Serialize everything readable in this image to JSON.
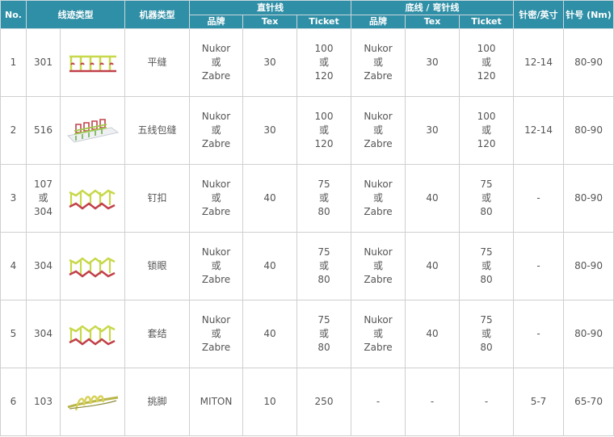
{
  "headers": {
    "no": "No.",
    "stitch_type": "线迹类型",
    "machine_type": "机器类型",
    "needle_thread": "直针线",
    "bobbin_thread": "底线 / 弯针线",
    "brand": "品牌",
    "tex": "Tex",
    "ticket": "Ticket",
    "spi": "针密/英寸",
    "needle_size": "针号 (Nm)"
  },
  "rows": [
    {
      "no": "1",
      "stitch": [
        "301"
      ],
      "machine": "平缝",
      "n_brand": [
        "Nukor",
        "或",
        "Zabre"
      ],
      "n_tex": "30",
      "n_ticket": [
        "100",
        "或",
        "120"
      ],
      "b_brand": [
        "Nukor",
        "或",
        "Zabre"
      ],
      "b_tex": "30",
      "b_ticket": [
        "100",
        "或",
        "120"
      ],
      "spi": "12-14",
      "needle": "80-90",
      "icon": "lockstitch-diagram-icon"
    },
    {
      "no": "2",
      "stitch": [
        "516"
      ],
      "machine": "五线包缝",
      "n_brand": [
        "Nukor",
        "或",
        "Zabre"
      ],
      "n_tex": "30",
      "n_ticket": [
        "100",
        "或",
        "120"
      ],
      "b_brand": [
        "Nukor",
        "或",
        "Zabre"
      ],
      "b_tex": "30",
      "b_ticket": [
        "100",
        "或",
        "120"
      ],
      "spi": "12-14",
      "needle": "80-90",
      "icon": "overlock-diagram-icon"
    },
    {
      "no": "3",
      "stitch": [
        "107",
        "或",
        "304"
      ],
      "machine": "钉扣",
      "n_brand": [
        "Nukor",
        "或",
        "Zabre"
      ],
      "n_tex": "40",
      "n_ticket": [
        "75",
        "或",
        "80"
      ],
      "b_brand": [
        "Nukor",
        "或",
        "Zabre"
      ],
      "b_tex": "40",
      "b_ticket": [
        "75",
        "或",
        "80"
      ],
      "spi": "-",
      "needle": "80-90",
      "icon": "zigzag-diagram-icon"
    },
    {
      "no": "4",
      "stitch": [
        "304"
      ],
      "machine": "锁眼",
      "n_brand": [
        "Nukor",
        "或",
        "Zabre"
      ],
      "n_tex": "40",
      "n_ticket": [
        "75",
        "或",
        "80"
      ],
      "b_brand": [
        "Nukor",
        "或",
        "Zabre"
      ],
      "b_tex": "40",
      "b_ticket": [
        "75",
        "或",
        "80"
      ],
      "spi": "-",
      "needle": "80-90",
      "icon": "zigzag-diagram-icon"
    },
    {
      "no": "5",
      "stitch": [
        "304"
      ],
      "machine": "套结",
      "n_brand": [
        "Nukor",
        "或",
        "Zabre"
      ],
      "n_tex": "40",
      "n_ticket": [
        "75",
        "或",
        "80"
      ],
      "b_brand": [
        "Nukor",
        "或",
        "Zabre"
      ],
      "b_tex": "40",
      "b_ticket": [
        "75",
        "或",
        "80"
      ],
      "spi": "-",
      "needle": "80-90",
      "icon": "zigzag-diagram-icon"
    },
    {
      "no": "6",
      "stitch": [
        "103"
      ],
      "machine": "挑脚",
      "n_brand": [
        "MITON"
      ],
      "n_tex": "10",
      "n_ticket": [
        "250"
      ],
      "b_brand": [
        "-"
      ],
      "b_tex": "-",
      "b_ticket": [
        "-"
      ],
      "spi": "5-7",
      "needle": "65-70",
      "icon": "blindstitch-diagram-icon"
    }
  ],
  "colors": {
    "header_bg": "#2f8fa6",
    "thread_top": "#c8d84a",
    "thread_bottom": "#c2404a",
    "thread_blind": "#b9b64a"
  }
}
